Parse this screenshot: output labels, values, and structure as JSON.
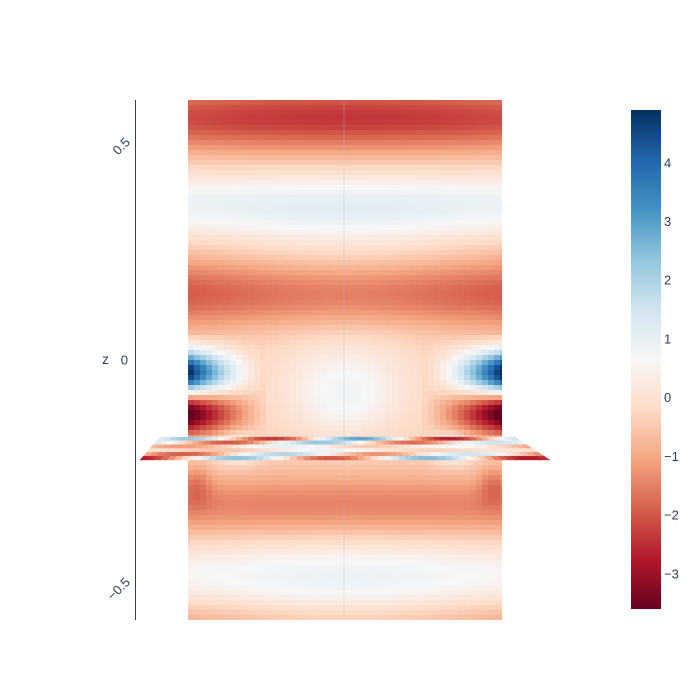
{
  "chart_data": {
    "type": "heatmap",
    "title": "",
    "scene": {
      "axis": "z",
      "zlabel": "z",
      "zrange": [
        -0.75,
        0.75
      ],
      "ztick_values": [
        0.5,
        0,
        -0.5
      ],
      "ztick_labels": [
        "0.5",
        "0",
        "−0.5"
      ],
      "grid": false
    },
    "colorscale": {
      "name": "RdBu",
      "stops": [
        [
          0.0,
          "#67001f"
        ],
        [
          0.1,
          "#b2182b"
        ],
        [
          0.2,
          "#d6604d"
        ],
        [
          0.3,
          "#f4a582"
        ],
        [
          0.4,
          "#fddbc7"
        ],
        [
          0.5,
          "#f7f7f7"
        ],
        [
          0.6,
          "#d1e5f0"
        ],
        [
          0.7,
          "#92c5de"
        ],
        [
          0.8,
          "#4393c3"
        ],
        [
          0.9,
          "#2166ac"
        ],
        [
          1.0,
          "#053061"
        ]
      ],
      "cmin": -3.6,
      "cmax": 4.9
    },
    "colorbar": {
      "ticks": [
        4,
        3,
        2,
        1,
        0,
        -1,
        -2,
        -3
      ],
      "tick_labels": [
        "4",
        "3",
        "2",
        "1",
        "0",
        "−1",
        "−2",
        "−3"
      ]
    },
    "surfaces": [
      {
        "name": "vertical-slice",
        "orientation": "vertical"
      },
      {
        "name": "horizontal-slice",
        "orientation": "horizontal",
        "z": -0.15
      }
    ]
  }
}
